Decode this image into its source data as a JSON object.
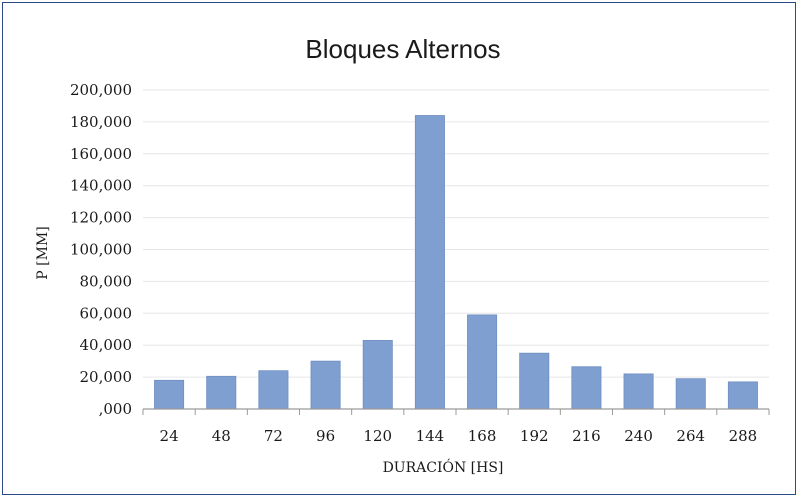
{
  "chart_data": {
    "type": "bar",
    "title": "Bloques Alternos",
    "xlabel": "DURACIÓN [HS]",
    "ylabel": "P [MM]",
    "categories": [
      "24",
      "48",
      "72",
      "96",
      "120",
      "144",
      "168",
      "192",
      "216",
      "240",
      "264",
      "288"
    ],
    "values": [
      18,
      20.5,
      24,
      30,
      43,
      184,
      59,
      35,
      26.5,
      22,
      19,
      17
    ],
    "ylim": [
      0,
      200
    ],
    "yticks": [
      0,
      20,
      40,
      60,
      80,
      100,
      120,
      140,
      160,
      180,
      200
    ],
    "ytick_labels": [
      ",000",
      "20,000",
      "40,000",
      "60,000",
      "80,000",
      "100,000",
      "120,000",
      "140,000",
      "160,000",
      "180,000",
      "200,000"
    ],
    "grid": true,
    "legend": "none",
    "colors": {
      "bar": "#7f9fd0",
      "bar_edge": "#6f8fc2",
      "grid": "#e6e6e6",
      "axis": "#9a9a9a",
      "frame": "#2c4a86"
    }
  }
}
